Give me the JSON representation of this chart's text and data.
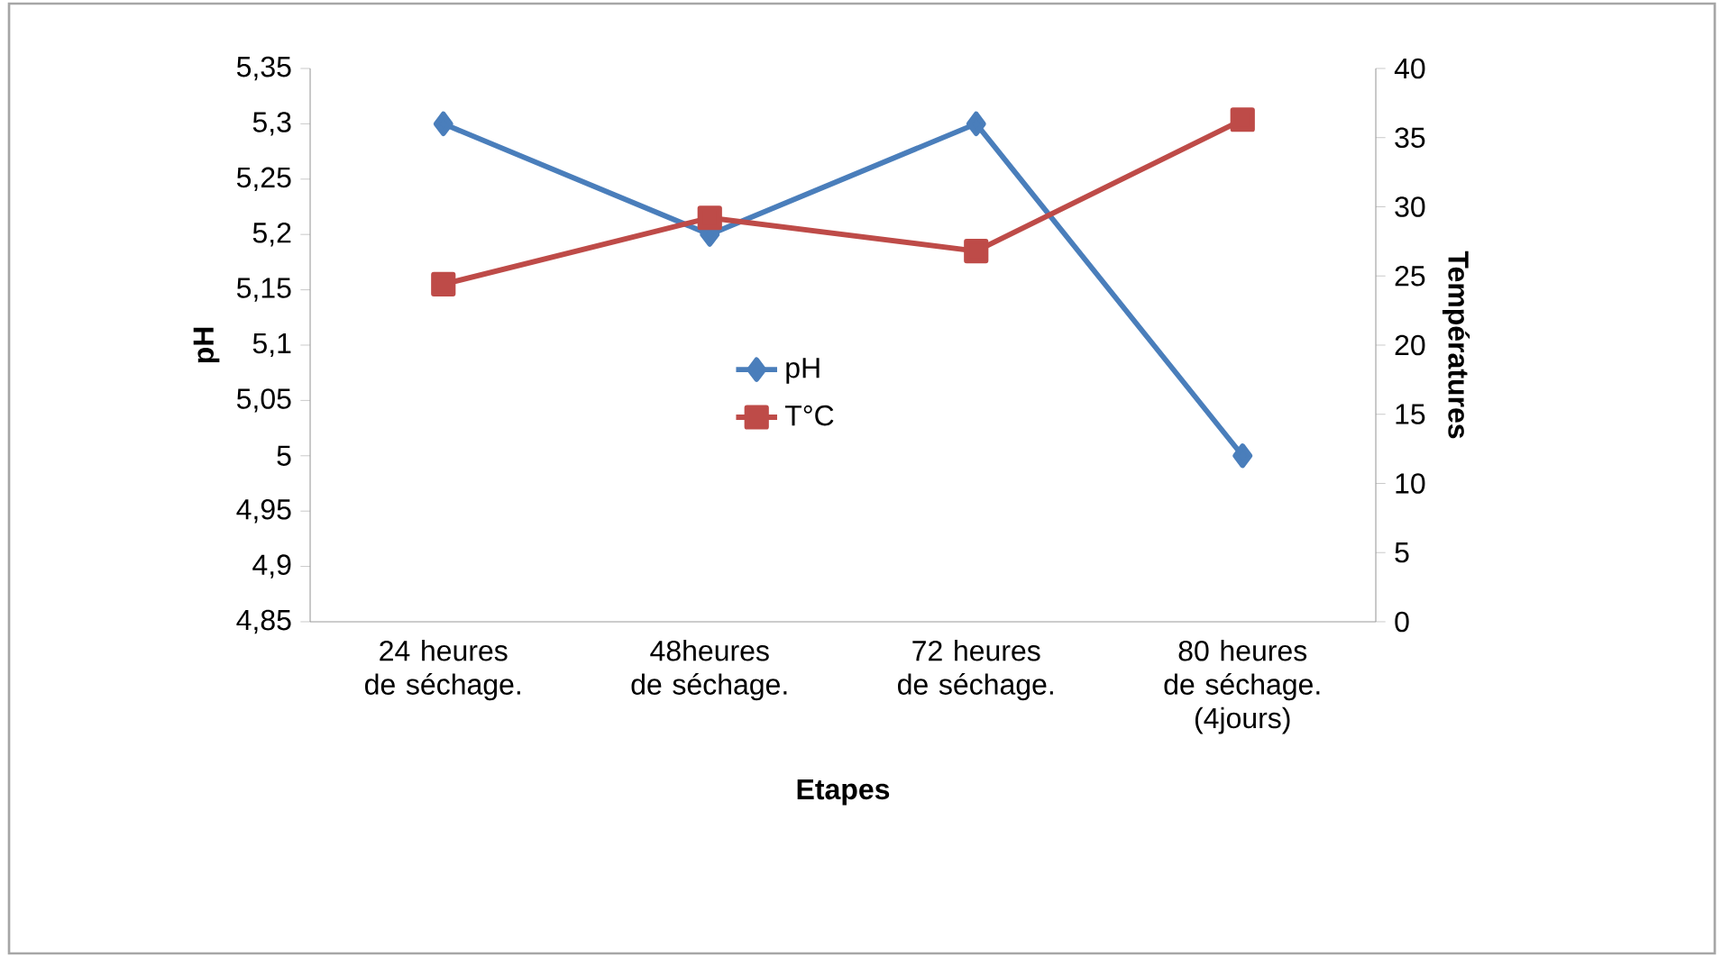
{
  "chart_data": {
    "type": "line",
    "xlabel": "Etapes",
    "ylabel": "pH",
    "y2label": "Températures",
    "categories": [
      "24 heures de séchage.",
      "48heures de séchage.",
      "72 heures de séchage.",
      "80 heures de séchage. (4jours)"
    ],
    "series": [
      {
        "name": "pH",
        "color": "#4a7ebb",
        "marker": "diamond",
        "values": [
          5.3,
          5.2,
          5.3,
          5.0
        ]
      },
      {
        "name": "T°C",
        "color": "#be4b48",
        "marker": "square",
        "axis": "y2",
        "values": [
          24.4,
          29.2,
          26.8,
          36.3
        ]
      }
    ],
    "ylim": [
      4.85,
      5.35
    ],
    "yticks": [
      {
        "value": 4.85,
        "label": "4,85"
      },
      {
        "value": 4.9,
        "label": "4,9"
      },
      {
        "value": 4.95,
        "label": "4,95"
      },
      {
        "value": 5.0,
        "label": "5"
      },
      {
        "value": 5.05,
        "label": "5,05"
      },
      {
        "value": 5.1,
        "label": "5,1"
      },
      {
        "value": 5.15,
        "label": "5,15"
      },
      {
        "value": 5.2,
        "label": "5,2"
      },
      {
        "value": 5.25,
        "label": "5,25"
      },
      {
        "value": 5.3,
        "label": "5,3"
      },
      {
        "value": 5.35,
        "label": "5,35"
      }
    ],
    "y2lim": [
      0,
      40
    ],
    "y2ticks": [
      0,
      5,
      10,
      15,
      20,
      25,
      30,
      35,
      40
    ],
    "legend": "center",
    "grid": false,
    "line_style": "solid"
  }
}
